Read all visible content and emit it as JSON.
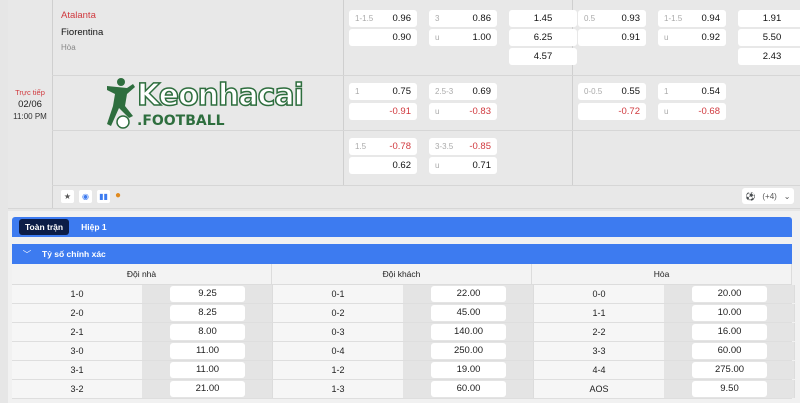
{
  "match": {
    "status": "Trực tiếp",
    "date": "02/06",
    "time": "11:00 PM",
    "home": "Atalanta",
    "away": "Fiorentina",
    "draw": "Hòa",
    "watermark": "Keonhacai .FOOTBALL"
  },
  "odds": {
    "row1": [
      {
        "h": "1-1.5",
        "v": "0.96"
      },
      {
        "h": "",
        "v": "0.90"
      },
      {
        "h": "3",
        "v": "0.86"
      },
      {
        "h": "u",
        "v": "1.00"
      },
      {
        "v": "1.45"
      },
      {
        "v": "6.25"
      },
      {
        "v": "4.57"
      },
      {
        "h": "0.5",
        "v": "0.93"
      },
      {
        "h": "",
        "v": "0.91"
      },
      {
        "h": "1-1.5",
        "v": "0.94"
      },
      {
        "h": "u",
        "v": "0.92"
      },
      {
        "v": "1.91"
      },
      {
        "v": "5.50"
      },
      {
        "v": "2.43"
      }
    ],
    "row2": [
      {
        "h": "1",
        "v": "0.75"
      },
      {
        "h": "",
        "v": "-0.91"
      },
      {
        "h": "2.5-3",
        "v": "0.69"
      },
      {
        "h": "u",
        "v": "-0.83"
      },
      {
        "h": "0-0.5",
        "v": "0.55"
      },
      {
        "h": "",
        "v": "-0.72"
      },
      {
        "h": "1",
        "v": "0.54"
      },
      {
        "h": "u",
        "v": "-0.68"
      }
    ],
    "row3": [
      {
        "h": "1.5",
        "v": "-0.78"
      },
      {
        "h": "",
        "v": "0.62"
      },
      {
        "h": "3-3.5",
        "v": "-0.85"
      },
      {
        "h": "u",
        "v": "0.71"
      }
    ]
  },
  "more_markets": "(+4)",
  "tabs": [
    "Toàn trận",
    "Hiệp 1"
  ],
  "section_title": "Tỷ số chính xác",
  "columns": [
    "Đội nhà",
    "Đội khách",
    "Hòa"
  ],
  "rows": [
    [
      [
        "1-0",
        "9.25"
      ],
      [
        "0-1",
        "22.00"
      ],
      [
        "0-0",
        "20.00"
      ]
    ],
    [
      [
        "2-0",
        "8.25"
      ],
      [
        "0-2",
        "45.00"
      ],
      [
        "1-1",
        "10.00"
      ]
    ],
    [
      [
        "2-1",
        "8.00"
      ],
      [
        "0-3",
        "140.00"
      ],
      [
        "2-2",
        "16.00"
      ]
    ],
    [
      [
        "3-0",
        "11.00"
      ],
      [
        "0-4",
        "250.00"
      ],
      [
        "3-3",
        "60.00"
      ]
    ],
    [
      [
        "3-1",
        "11.00"
      ],
      [
        "1-2",
        "19.00"
      ],
      [
        "4-4",
        "275.00"
      ]
    ],
    [
      [
        "3-2",
        "21.00"
      ],
      [
        "1-3",
        "60.00"
      ],
      [
        "AOS",
        "9.50"
      ]
    ]
  ],
  "colors": {
    "accent": "#3d7bf0",
    "negative": "#d0393e",
    "live": "#d0393e",
    "logo": "#2e7d32"
  }
}
